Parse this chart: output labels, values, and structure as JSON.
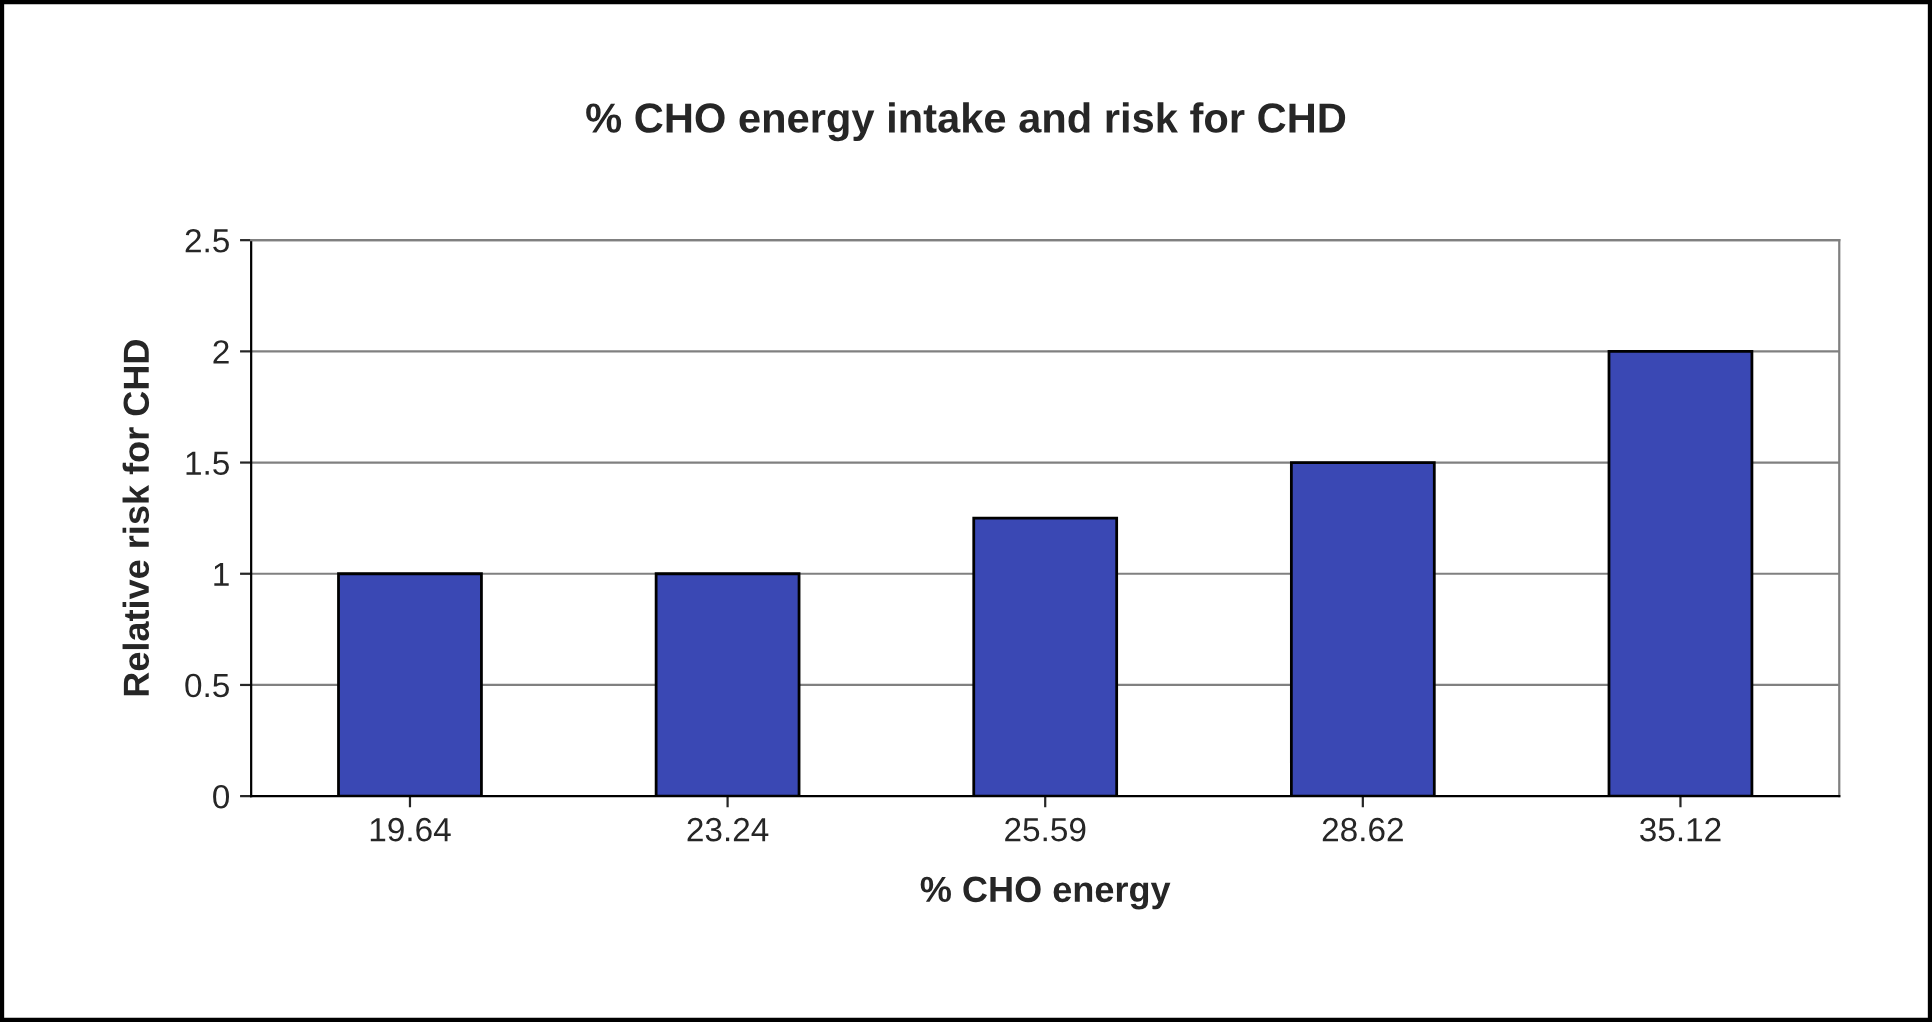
{
  "chart_data": {
    "type": "bar",
    "title": "% CHO energy intake and risk for CHD",
    "xlabel": "% CHO energy",
    "ylabel": "Relative risk for CHD",
    "categories": [
      "19.64",
      "23.24",
      "25.59",
      "28.62",
      "35.12"
    ],
    "values": [
      1,
      1,
      1.25,
      1.5,
      2
    ],
    "color": "#3a48b4",
    "ylim": [
      0,
      2.5
    ],
    "yticks": [
      0,
      0.5,
      1,
      1.5,
      2,
      2.5
    ],
    "grid": "y",
    "legend": false
  }
}
